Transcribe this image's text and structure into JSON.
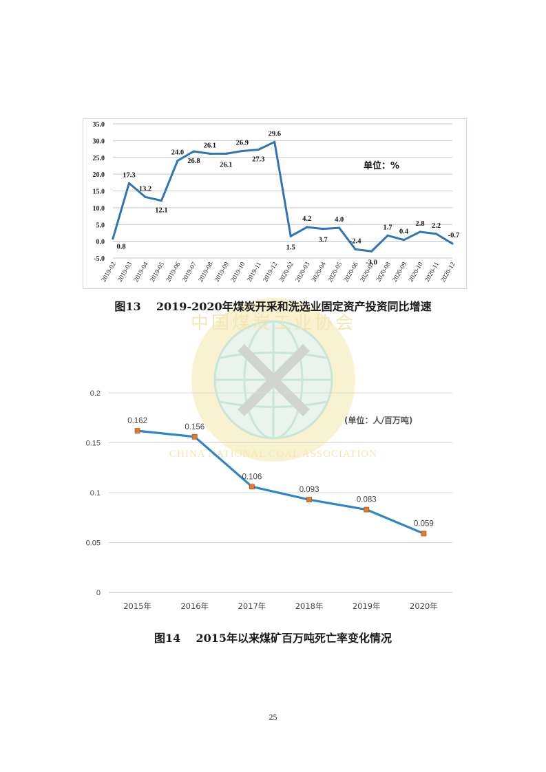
{
  "chart_data": [
    {
      "type": "line",
      "caption": "图13    2019-2020年煤炭开采和洗选业固定资产投资同比增速",
      "unit_label": "单位：%",
      "categories": [
        "2019-02",
        "2019-03",
        "2019-04",
        "2019-05",
        "2019-06",
        "2019-07",
        "2019-08",
        "2019-09",
        "2019-10",
        "2019-11",
        "2019-12",
        "2020-02",
        "2020-03",
        "2020-04",
        "2020-05",
        "2020-06",
        "2020-07",
        "2020-08",
        "2020-09",
        "2020-10",
        "2020-11",
        "2020-12"
      ],
      "values": [
        0.8,
        17.3,
        13.2,
        12.1,
        24.0,
        26.8,
        26.1,
        26.1,
        26.9,
        27.3,
        29.6,
        1.5,
        4.2,
        3.7,
        4.0,
        -2.4,
        -3.0,
        1.7,
        0.4,
        2.8,
        2.2,
        -0.7
      ],
      "labels": [
        "0.8",
        "17.3",
        "13.2",
        "12.1",
        "24.0",
        "26.8",
        "26.1",
        "26.1",
        "26.9",
        "27.3",
        "29.6",
        "1.5",
        "4.2",
        "3.7",
        "4.0",
        "-2.4",
        "-3.0",
        "1.7",
        "0.4",
        "2.8",
        "2.2",
        "-0.7"
      ],
      "yticks": [
        "35.0",
        "30.0",
        "25.0",
        "20.0",
        "15.0",
        "10.0",
        "5.0",
        "0.0",
        "-5.0"
      ],
      "ylim": [
        -5,
        35
      ],
      "grid": true,
      "line_color": "#2f74b5"
    },
    {
      "type": "line",
      "caption": "图14    2015年以来煤矿百万吨死亡率变化情况",
      "unit_label": "(单位：人/百万吨)",
      "categories": [
        "2015年",
        "2016年",
        "2017年",
        "2018年",
        "2019年",
        "2020年"
      ],
      "values": [
        0.162,
        0.156,
        0.106,
        0.093,
        0.083,
        0.059
      ],
      "labels": [
        "0.162",
        "0.156",
        "0.106",
        "0.093",
        "0.083",
        "0.059"
      ],
      "yticks": [
        "0.2",
        "0.15",
        "0.1",
        "0.05",
        "0"
      ],
      "ylim": [
        0,
        0.2
      ],
      "grid": true,
      "line_color": "#2e86c9",
      "marker_color": "#e07b2e"
    }
  ],
  "watermark": {
    "text_cn": "中国煤炭工业协会",
    "text_en": "CHINA NATIONAL COAL ASSOCIATION"
  },
  "page_number": "25"
}
